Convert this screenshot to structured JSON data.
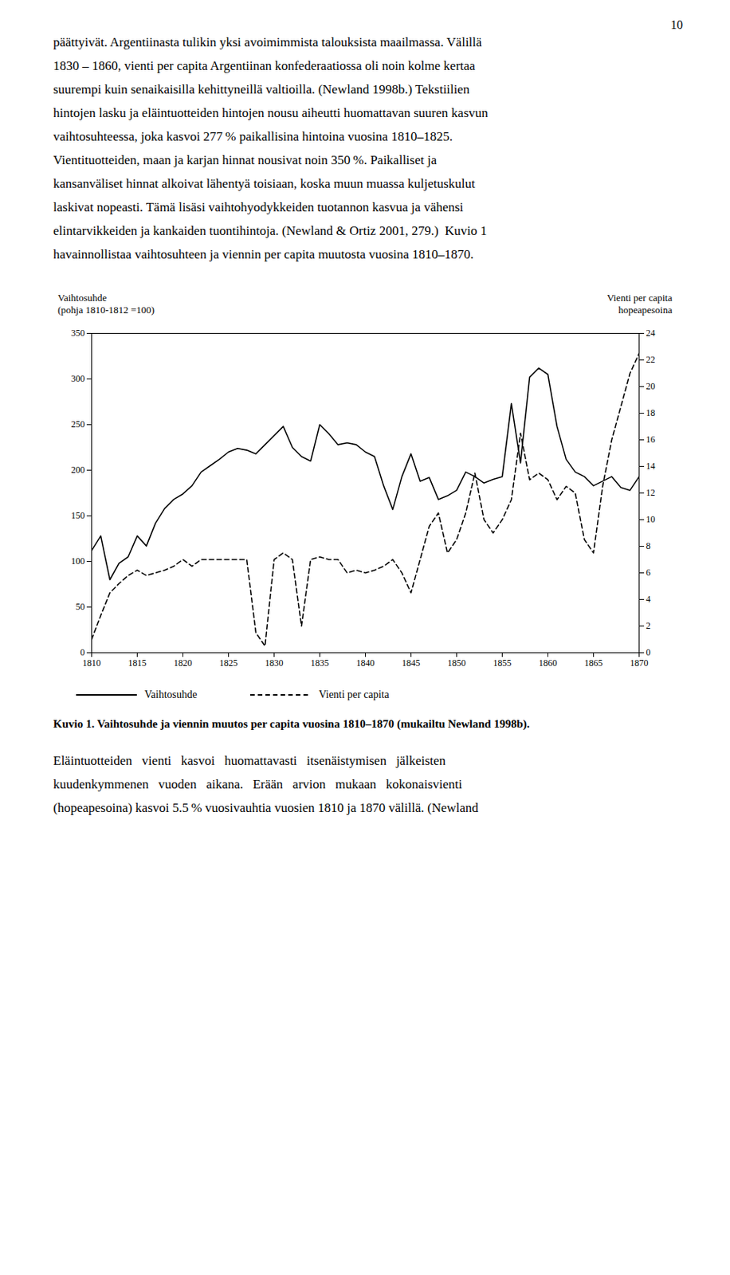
{
  "page_number": "10",
  "body_texts": [
    "päättyivät. Argentiinasta tulikin yksi avoimimmista talouksista maailmassa. Välillä",
    "1830 – 1860, vienti per capita Argentiinan konfederaatiossa oli noin kolme kertaa",
    "suurempi kuin senaikaisilla kehittyneillä valtioilla. (Newland 1998b.) Tekstiilien",
    "hintojen lasku ja eläintuotteiden hintojen nousu aiheutti huomattavan suuren kasvun",
    "vaihtosuhteessa, joka kasvoi 277 % paikallisina hintoina vuosina 1810–1825.",
    "Vientituotteiden, maan ja karjan hinnat nousivat noin 350 %. Paikalliset ja",
    "kansanväliset hinnat alkoivat lähentyä toisiaan, koska muun muassa kuljetuskulut",
    "laskivat nopeasti. Tämä lisäsi vaihtohyodykkeiden tuotannon kasvua ja vähensi",
    "elintarvikkeiden ja kankaiden tuontihintoja. (Newland & Ortiz 2001, 279.)  Kuvio 1",
    "havainnollistaa vaihtosuhteen ja viennin per capita muutosta vuosina 1810–1870."
  ],
  "bottom_texts": [
    "Eläintuotteiden   vienti   kasvoi   huomattavasti   itsenäistymisen   jälkeisten",
    "kuudenkymmenen   vuoden   aikana.   Erään   arvion   mukaan   kokonaisvienti",
    "(hopeapesoina) kasvoi 5.5 % vuosivauhtia vuosien 1810 ja 1870 välillä. (Newland"
  ],
  "chart_data": {
    "type": "line",
    "caption": "Kuvio 1. Vaihtosuhde ja viennin muutos per capita vuosina 1810–1870 (mukailtu Newland 1998b).",
    "ylabel": "Vaihtosuhde\n(pohja 1810-1812 =100)",
    "y2label": "Vienti per capita\nhopeapesoina",
    "x": [
      1810,
      1811,
      1812,
      1813,
      1814,
      1815,
      1816,
      1817,
      1818,
      1819,
      1820,
      1821,
      1822,
      1823,
      1824,
      1825,
      1826,
      1827,
      1828,
      1829,
      1830,
      1831,
      1832,
      1833,
      1834,
      1835,
      1836,
      1837,
      1838,
      1839,
      1840,
      1841,
      1842,
      1843,
      1844,
      1845,
      1846,
      1847,
      1848,
      1849,
      1850,
      1851,
      1852,
      1853,
      1854,
      1855,
      1856,
      1857,
      1858,
      1859,
      1860,
      1861,
      1862,
      1863,
      1864,
      1865,
      1866,
      1867,
      1868,
      1869,
      1870
    ],
    "xlim": [
      1810,
      1870
    ],
    "xticks": [
      1810,
      1815,
      1820,
      1825,
      1830,
      1835,
      1840,
      1845,
      1850,
      1855,
      1860,
      1865,
      1870
    ],
    "ylim": [
      0,
      350
    ],
    "yticks": [
      0,
      50,
      100,
      150,
      200,
      250,
      300,
      350
    ],
    "y2lim": [
      0,
      24
    ],
    "y2ticks": [
      0,
      2,
      4,
      6,
      8,
      10,
      12,
      14,
      16,
      18,
      20,
      22,
      24
    ],
    "grid": false,
    "legend": "bottom",
    "series": [
      {
        "name": "Vaihtosuhde",
        "color": "#000000",
        "line_style": "solid",
        "axis": "y",
        "values": [
          112,
          128,
          80,
          98,
          105,
          128,
          117,
          142,
          158,
          168,
          174,
          183,
          198,
          205,
          212,
          220,
          224,
          222,
          218,
          228,
          238,
          248,
          225,
          215,
          210,
          250,
          240,
          228,
          230,
          228,
          220,
          215,
          183,
          157,
          193,
          218,
          188,
          192,
          168,
          172,
          178,
          198,
          193,
          186,
          190,
          193,
          273,
          208,
          302,
          312,
          305,
          248,
          212,
          198,
          193,
          183,
          188,
          193,
          181,
          178,
          193
        ]
      },
      {
        "name": "Vienti per capita",
        "color": "#000000",
        "line_style": "dashed",
        "axis": "y2",
        "values": [
          1.0,
          2.8,
          4.5,
          5.2,
          5.8,
          6.2,
          5.8,
          6.0,
          6.2,
          6.5,
          7.0,
          6.5,
          7.0,
          7.0,
          7.0,
          7.0,
          7.0,
          7.0,
          1.5,
          0.5,
          7.0,
          7.5,
          7.0,
          2.0,
          7.0,
          7.2,
          7.0,
          7.0,
          6.0,
          6.2,
          6.0,
          6.2,
          6.5,
          7.0,
          6.0,
          4.5,
          7.0,
          9.5,
          10.5,
          7.5,
          8.5,
          10.5,
          13.5,
          10.0,
          9.0,
          10.0,
          11.5,
          16.5,
          13.0,
          13.5,
          13.0,
          11.5,
          12.5,
          12.0,
          8.5,
          7.5,
          12.5,
          16.0,
          18.5,
          21.0,
          22.5
        ]
      }
    ]
  }
}
